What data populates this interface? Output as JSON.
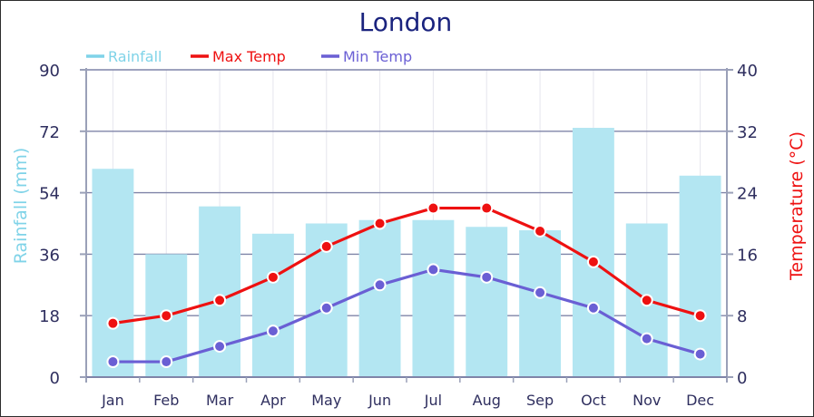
{
  "chart_data": {
    "type": "bar",
    "title": "London",
    "categories": [
      "Jan",
      "Feb",
      "Mar",
      "Apr",
      "May",
      "Jun",
      "Jul",
      "Aug",
      "Sep",
      "Oct",
      "Nov",
      "Dec"
    ],
    "series": [
      {
        "name": "Rainfall",
        "type": "bar",
        "axis": "left",
        "color": "#b3e6f2",
        "legend_color": "#7fd3e8",
        "values": [
          61,
          36,
          50,
          42,
          45,
          46,
          46,
          44,
          43,
          73,
          45,
          59
        ]
      },
      {
        "name": "Max Temp",
        "type": "line",
        "axis": "right",
        "color": "#ee1111",
        "values": [
          7,
          8,
          10,
          13,
          17,
          20,
          22,
          22,
          19,
          15,
          10,
          8
        ]
      },
      {
        "name": "Min Temp",
        "type": "line",
        "axis": "right",
        "color": "#6a5fd4",
        "values": [
          2,
          2,
          4,
          6,
          9,
          12,
          14,
          13,
          11,
          9,
          5,
          3
        ]
      }
    ],
    "ylabel_left": "Rainfall (mm)",
    "ylabel_right": "Temperature (°C)",
    "ylim_left": [
      0,
      90
    ],
    "ylim_right": [
      0,
      40
    ],
    "yticks_left": [
      "0",
      "18",
      "36",
      "54",
      "72",
      "90"
    ],
    "yticks_right": [
      "0",
      "8",
      "16",
      "24",
      "32",
      "40"
    ],
    "legend_position": "top-left",
    "grid": true,
    "colors": {
      "title": "#1a237e",
      "axis_text": "#2f2f5f",
      "left_axis_label": "#7fd3e8",
      "right_axis_label": "#ee1111",
      "grid": "#7f84a8",
      "vgrid": "#e6e6ee"
    }
  }
}
